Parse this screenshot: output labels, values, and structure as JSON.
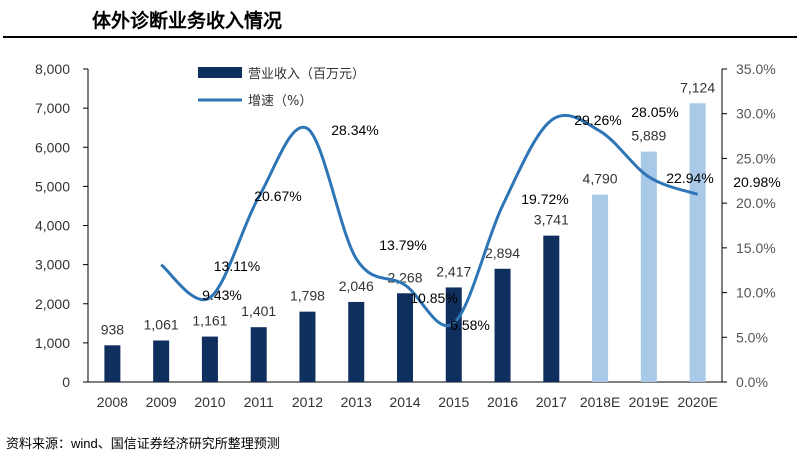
{
  "title": "体外诊断业务收入情况",
  "source": "资料来源：wind、国信证券经济研究所整理预测",
  "chart_data": {
    "type": "bar+line",
    "categories": [
      "2008",
      "2009",
      "2010",
      "2011",
      "2012",
      "2013",
      "2014",
      "2015",
      "2016",
      "2017",
      "2018E",
      "2019E",
      "2020E"
    ],
    "series": [
      {
        "name": "营业收入（百万元）",
        "type": "bar",
        "axis": "left",
        "color": "#0f2f5f",
        "forecast_color": "#a9c9e9",
        "values": [
          938,
          1061,
          1161,
          1401,
          1798,
          2046,
          2268,
          2417,
          2894,
          3741,
          4790,
          5889,
          7124
        ],
        "labels": [
          "938",
          "1,061",
          "1,161",
          "1,401",
          "1,798",
          "2,046",
          "2,268",
          "2,417",
          "2,894",
          "3,741",
          "4,790",
          "5,889",
          "7,124"
        ]
      },
      {
        "name": "增速（%）",
        "type": "line",
        "axis": "right",
        "color": "#2e75b6",
        "values": [
          null,
          13.11,
          9.43,
          20.67,
          28.34,
          13.79,
          10.85,
          6.58,
          19.72,
          29.26,
          28.05,
          22.94,
          20.98
        ],
        "labels": [
          "",
          "13.11%",
          "9.43%",
          "20.67%",
          "28.34%",
          "13.79%",
          "10.85%",
          "6.58%",
          "19.72%",
          "29.26%",
          "28.05%",
          "22.94%",
          "20.98%"
        ]
      }
    ],
    "forecast_categories": [
      "2018E",
      "2019E",
      "2020E"
    ],
    "left_axis": {
      "ylim": [
        0,
        8000
      ],
      "ticks": [
        "0",
        "1,000",
        "2,000",
        "3,000",
        "4,000",
        "5,000",
        "6,000",
        "7,000",
        "8,000"
      ]
    },
    "right_axis": {
      "ylim": [
        0,
        35
      ],
      "ticks": [
        "0.0%",
        "5.0%",
        "10.0%",
        "15.0%",
        "20.0%",
        "25.0%",
        "30.0%",
        "35.0%"
      ]
    },
    "grid": false,
    "legend": "top-center"
  }
}
